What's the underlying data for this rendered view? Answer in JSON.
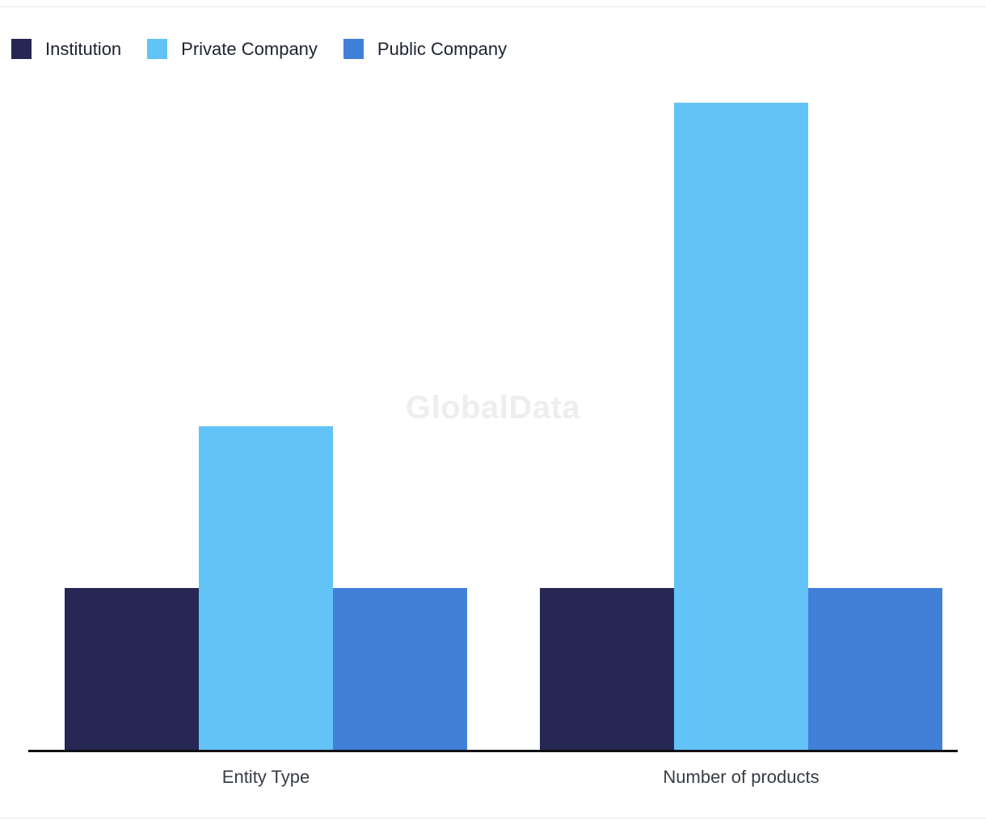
{
  "watermark": "GlobalData",
  "chart_data": {
    "type": "bar",
    "title": "",
    "xlabel": "",
    "ylabel": "",
    "categories": [
      "Entity Type",
      "Number of products"
    ],
    "series": [
      {
        "name": "Institution",
        "color": "#272753",
        "values": [
          1,
          1
        ]
      },
      {
        "name": "Private Company",
        "color": "#62C3F7",
        "values": [
          2,
          4
        ]
      },
      {
        "name": "Public Company",
        "color": "#4180D8",
        "values": [
          1,
          1
        ]
      }
    ],
    "ylim": [
      0,
      4.2
    ],
    "grid": false,
    "legend_position": "top"
  }
}
